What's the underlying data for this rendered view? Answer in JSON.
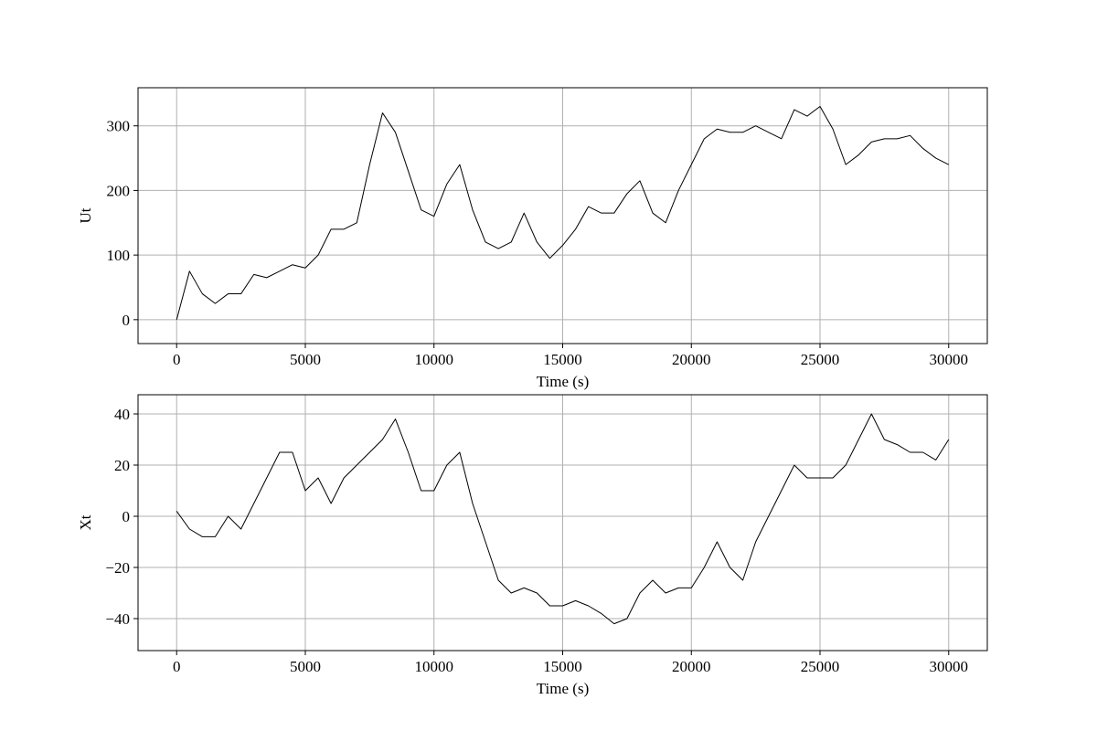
{
  "chart_data": [
    {
      "type": "line",
      "xlabel": "Time (s)",
      "ylabel": "Ut",
      "grid": true,
      "color": "#000000",
      "x": [
        0,
        500,
        1000,
        1500,
        2000,
        2500,
        3000,
        3500,
        4000,
        4500,
        5000,
        5500,
        6000,
        6500,
        7000,
        7500,
        8000,
        8500,
        9000,
        9500,
        10000,
        10500,
        11000,
        11500,
        12000,
        12500,
        13000,
        13500,
        14000,
        14500,
        15000,
        15500,
        16000,
        16500,
        17000,
        17500,
        18000,
        18500,
        19000,
        19500,
        20000,
        20500,
        21000,
        21500,
        22000,
        22500,
        23000,
        23500,
        24000,
        24500,
        25000,
        25500,
        26000,
        26500,
        27000,
        27500,
        28000,
        28500,
        29000,
        29500,
        30000
      ],
      "values": [
        0,
        75,
        40,
        25,
        40,
        40,
        70,
        65,
        75,
        85,
        80,
        100,
        140,
        140,
        150,
        240,
        320,
        290,
        230,
        170,
        160,
        210,
        240,
        170,
        120,
        110,
        120,
        165,
        120,
        95,
        115,
        140,
        175,
        165,
        165,
        195,
        215,
        165,
        150,
        200,
        240,
        280,
        295,
        290,
        290,
        300,
        290,
        280,
        325,
        315,
        330,
        295,
        240,
        255,
        275,
        280,
        280,
        285,
        265,
        250,
        240
      ],
      "xlim": [
        -1500,
        31500
      ],
      "xticks": [
        0,
        5000,
        10000,
        15000,
        20000,
        25000,
        30000
      ],
      "ylim": [
        -37,
        359
      ],
      "yticks": [
        0,
        100,
        200,
        300
      ]
    },
    {
      "type": "line",
      "xlabel": "Time (s)",
      "ylabel": "Xt",
      "grid": true,
      "color": "#000000",
      "x": [
        0,
        500,
        1000,
        1500,
        2000,
        2500,
        3000,
        3500,
        4000,
        4500,
        5000,
        5500,
        6000,
        6500,
        7000,
        7500,
        8000,
        8500,
        9000,
        9500,
        10000,
        10500,
        11000,
        11500,
        12000,
        12500,
        13000,
        13500,
        14000,
        14500,
        15000,
        15500,
        16000,
        16500,
        17000,
        17500,
        18000,
        18500,
        19000,
        19500,
        20000,
        20500,
        21000,
        21500,
        22000,
        22500,
        23000,
        23500,
        24000,
        24500,
        25000,
        25500,
        26000,
        26500,
        27000,
        27500,
        28000,
        28500,
        29000,
        29500,
        30000
      ],
      "values": [
        2,
        -5,
        -8,
        -8,
        0,
        -5,
        5,
        15,
        25,
        25,
        10,
        15,
        5,
        15,
        20,
        25,
        30,
        38,
        25,
        10,
        10,
        20,
        25,
        5,
        -10,
        -25,
        -30,
        -28,
        -30,
        -35,
        -35,
        -33,
        -35,
        -38,
        -42,
        -40,
        -30,
        -25,
        -30,
        -28,
        -28,
        -20,
        -10,
        -20,
        -25,
        -10,
        0,
        10,
        20,
        15,
        15,
        15,
        20,
        30,
        40,
        30,
        28,
        25,
        25,
        22,
        30
      ],
      "xlim": [
        -1500,
        31500
      ],
      "xticks": [
        0,
        5000,
        10000,
        15000,
        20000,
        25000,
        30000
      ],
      "ylim": [
        -52.5,
        47.5
      ],
      "yticks": [
        {
          "value": -40,
          "label": "−40"
        },
        {
          "value": -20,
          "label": "−20"
        },
        0,
        20,
        40
      ]
    }
  ]
}
